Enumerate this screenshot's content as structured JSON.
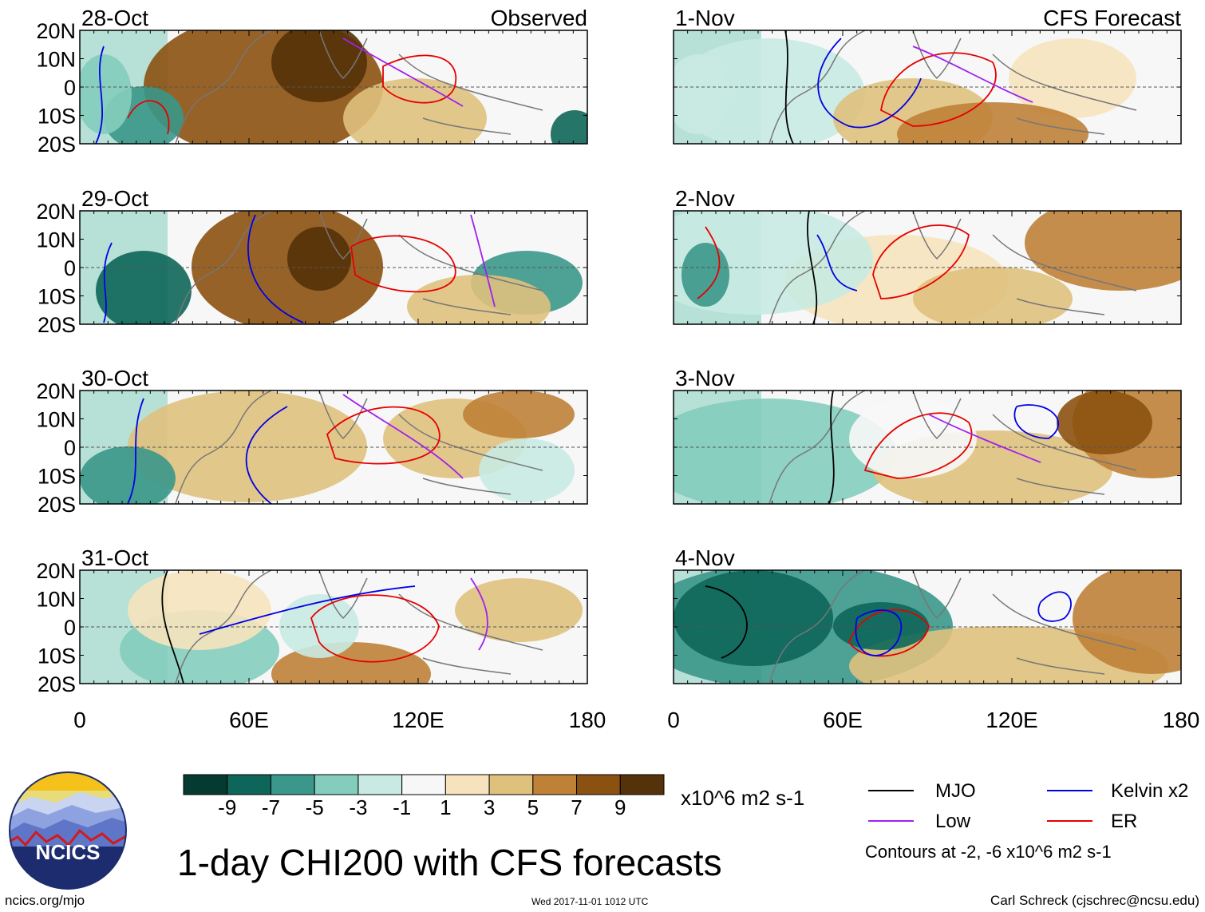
{
  "chart_data": {
    "type": "heatmap",
    "title": "1-day CHI200 with CFS forecasts",
    "units": "x10^6 m2 s-1",
    "observed_label": "Observed",
    "forecast_label": "CFS Forecast",
    "lat_ticks": [
      "20N",
      "10N",
      "0",
      "10S",
      "20S"
    ],
    "lon_ticks": [
      "0",
      "60E",
      "120E",
      "180"
    ],
    "lat_range": [
      -20,
      20
    ],
    "lon_range": [
      0,
      180
    ],
    "colorbar": {
      "labels": [
        "-9",
        "-7",
        "-5",
        "-3",
        "-1",
        "1",
        "3",
        "5",
        "7",
        "9"
      ],
      "colors": [
        "#053a30",
        "#0d6659",
        "#3a978a",
        "#84cdbd",
        "#c8eae2",
        "#f7f7f7",
        "#f6e3bd",
        "#dfc17d",
        "#bf8137",
        "#8b5110",
        "#553209"
      ]
    },
    "observed_panels": [
      {
        "date": "28-Oct",
        "note": "strong positive (suppressed) CHI200 over 60E-120E"
      },
      {
        "date": "29-Oct",
        "note": "positive anomalies centered near 75E"
      },
      {
        "date": "30-Oct",
        "note": "positive anomalies weakening, negative west of 40E"
      },
      {
        "date": "31-Oct",
        "note": "mixed anomalies, positive near 110E and 140E"
      }
    ],
    "forecast_panels": [
      {
        "date": "1-Nov"
      },
      {
        "date": "2-Nov"
      },
      {
        "date": "3-Nov"
      },
      {
        "date": "4-Nov"
      }
    ],
    "legend": [
      {
        "label": "MJO",
        "color": "#000000"
      },
      {
        "label": "Kelvin x2",
        "color": "#0000e6"
      },
      {
        "label": "Low",
        "color": "#a020f0"
      },
      {
        "label": "ER",
        "color": "#e60000"
      }
    ],
    "contour_note": "Contours at -2, -6 x10^6 m2 s-1"
  },
  "footer": {
    "url": "ncics.org/mjo",
    "timestamp": "Wed 2017-11-01 1012 UTC",
    "credit": "Carl Schreck (cjschrec@ncsu.edu)",
    "logo_text": "NCICS"
  }
}
